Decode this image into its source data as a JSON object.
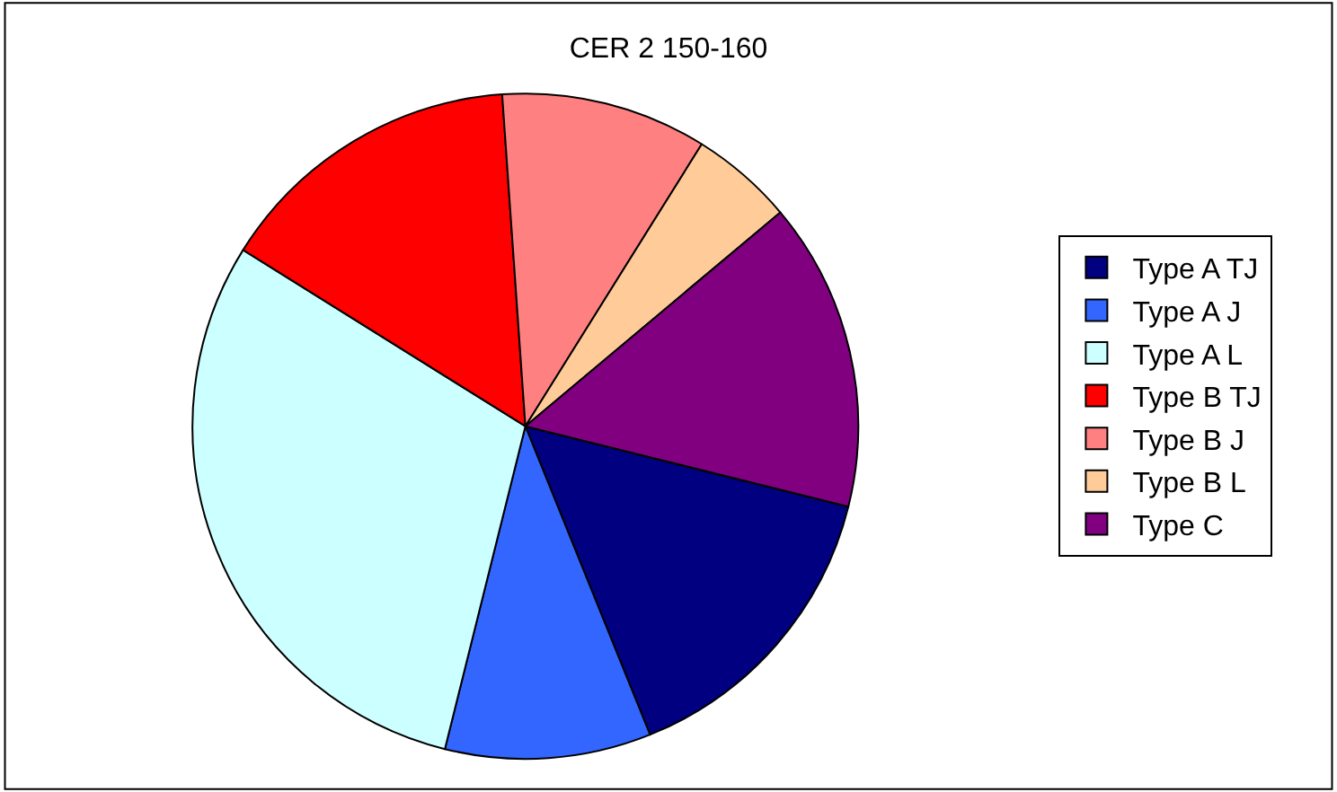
{
  "chart_data": {
    "type": "pie",
    "title": "CER 2 150-160",
    "categories": [
      "Type A TJ",
      "Type A J",
      "Type A L",
      "Type B TJ",
      "Type B J",
      "Type B L",
      "Type C"
    ],
    "values": [
      15,
      10,
      30,
      15,
      10,
      5,
      15
    ],
    "colors": [
      "#000080",
      "#3366ff",
      "#ccffff",
      "#ff0000",
      "#ff8080",
      "#ffcc99",
      "#800080"
    ],
    "legend": "right"
  }
}
